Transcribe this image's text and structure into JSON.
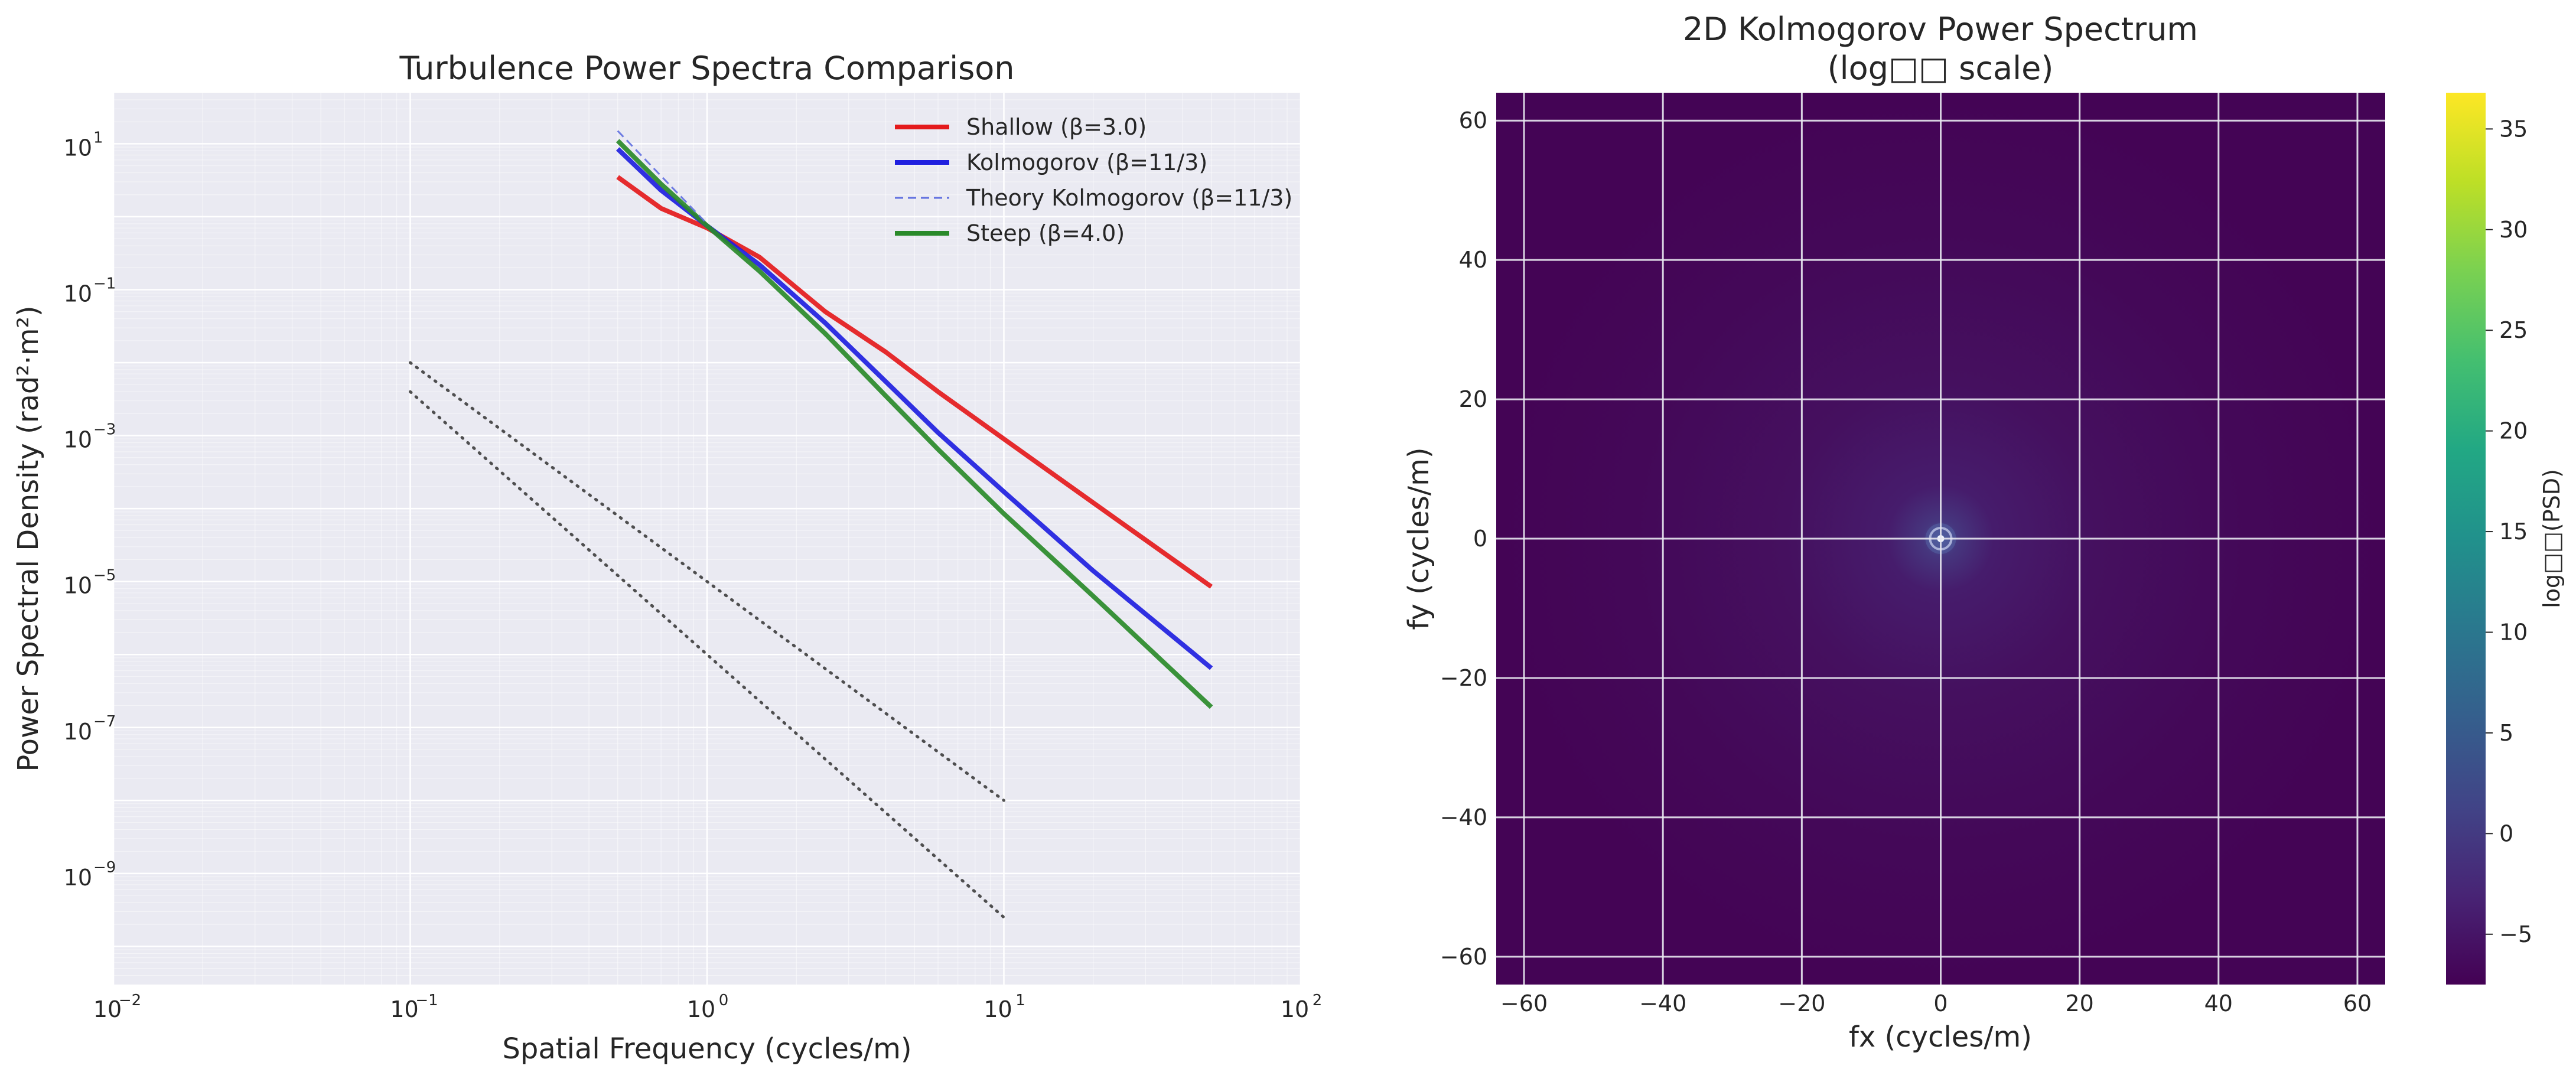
{
  "chart_data": [
    {
      "type": "line",
      "title": "Turbulence Power Spectra Comparison",
      "xlabel": "Spatial Frequency (cycles/m)",
      "ylabel": "Power Spectral Density (rad²·m²)",
      "xscale": "log",
      "yscale": "log",
      "xlim": [
        0.01,
        100
      ],
      "ylim": [
        3e-11,
        50
      ],
      "x_ticks": [
        {
          "base": "10",
          "exp": "−2",
          "value": 0.01
        },
        {
          "base": "10",
          "exp": "−1",
          "value": 0.1
        },
        {
          "base": "10",
          "exp": "0",
          "value": 1
        },
        {
          "base": "10",
          "exp": "1",
          "value": 10
        },
        {
          "base": "10",
          "exp": "2",
          "value": 100
        }
      ],
      "y_ticks": [
        {
          "base": "10",
          "exp": "1",
          "value": 10
        },
        {
          "base": "10",
          "exp": "−1",
          "value": 0.1
        },
        {
          "base": "10",
          "exp": "−3",
          "value": 0.001
        },
        {
          "base": "10",
          "exp": "−5",
          "value": 1e-05
        },
        {
          "base": "10",
          "exp": "−7",
          "value": 1e-07
        },
        {
          "base": "10",
          "exp": "−9",
          "value": 1e-09
        }
      ],
      "grid": true,
      "background": "#eaeaf2",
      "legend_position": "top-right",
      "series": [
        {
          "name": "Shallow (β=3.0)",
          "color": "#e41a1c",
          "style": "solid",
          "x": [
            0.5,
            0.7,
            1.0,
            1.5,
            2.5,
            4,
            6,
            10,
            20,
            50
          ],
          "y": [
            3.5,
            1.3,
            0.7,
            0.28,
            0.05,
            0.014,
            0.004,
            0.0009,
            0.00012,
            8.5e-06
          ]
        },
        {
          "name": "Kolmogorov (β=11/3)",
          "color": "#1f1fdf",
          "style": "solid",
          "x": [
            0.5,
            0.7,
            1.0,
            1.5,
            2.5,
            4,
            6,
            10,
            20,
            50
          ],
          "y": [
            8.5,
            2.3,
            0.75,
            0.22,
            0.035,
            0.0055,
            0.0011,
            0.00017,
            1.4e-05,
            6.5e-07
          ]
        },
        {
          "name": "Theory Kolmogorov (β=11/3)",
          "color": "#6070e0",
          "style": "dashed",
          "x": [
            0.5,
            1.0
          ],
          "y": [
            15,
            0.8
          ]
        },
        {
          "name": "Steep (β=4.0)",
          "color": "#2a8a2a",
          "style": "solid",
          "x": [
            0.5,
            0.7,
            1.0,
            1.5,
            2.5,
            4,
            6,
            10,
            20,
            50
          ],
          "y": [
            11,
            2.8,
            0.75,
            0.18,
            0.025,
            0.0035,
            0.00065,
            8.5e-05,
            6.3e-06,
            1.9e-07
          ]
        },
        {
          "name": "",
          "color": "#333333",
          "style": "dotted",
          "x": [
            0.1,
            10
          ],
          "y": [
            0.01,
            1e-08
          ]
        },
        {
          "name": "",
          "color": "#333333",
          "style": "dotted",
          "x": [
            0.1,
            10
          ],
          "y": [
            0.004,
            2.5e-10
          ]
        }
      ]
    },
    {
      "type": "heatmap",
      "title": "2D Kolmogorov Power Spectrum",
      "title_line2": "(log□□ scale)",
      "xlabel": "fx (cycles/m)",
      "ylabel": "fy (cycles/m)",
      "xlim": [
        -64,
        64
      ],
      "ylim": [
        -64,
        64
      ],
      "x_ticks": [
        "−60",
        "−40",
        "−20",
        "0",
        "20",
        "40",
        "60"
      ],
      "y_ticks": [
        "60",
        "40",
        "20",
        "0",
        "−20",
        "−40",
        "−60"
      ],
      "x_tick_values": [
        -60,
        -40,
        -20,
        0,
        20,
        40,
        60
      ],
      "y_tick_values": [
        60,
        40,
        20,
        0,
        -20,
        -40,
        -60
      ],
      "colormap": "viridis",
      "colorbar_label": "log□□(PSD)",
      "colorbar_range": [
        -7.5,
        36.8
      ],
      "colorbar_ticks": [
        "35",
        "30",
        "25",
        "20",
        "15",
        "10",
        "5",
        "0",
        "−5"
      ],
      "colorbar_tick_values": [
        35,
        30,
        25,
        20,
        15,
        10,
        5,
        0,
        -5
      ],
      "values_description": "radially symmetric, log10 PSD ~ −5 to −7 over most of the field, peaking at the center (0,0)"
    }
  ]
}
